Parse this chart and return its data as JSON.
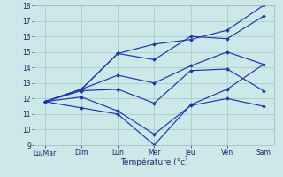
{
  "background_color": "#cce8e8",
  "grid_color": "#aacccc",
  "line_color": "#2233aa",
  "xlabel": "Température (°c)",
  "days": [
    "Lu/Mar",
    "Dim",
    "Lun",
    "Mer",
    "Jeu",
    "Ven",
    "Sam"
  ],
  "x_positions": [
    0,
    1,
    2,
    3,
    4,
    5,
    6
  ],
  "ylim": [
    9,
    18
  ],
  "yticks": [
    9,
    10,
    11,
    12,
    13,
    14,
    15,
    16,
    17,
    18
  ],
  "series": [
    [
      11.8,
      12.6,
      14.9,
      15.5,
      15.8,
      16.4,
      18.0
    ],
    [
      11.8,
      12.6,
      14.9,
      14.5,
      16.0,
      15.85,
      17.3
    ],
    [
      11.8,
      12.6,
      13.5,
      13.0,
      14.1,
      15.0,
      14.2
    ],
    [
      11.8,
      12.5,
      12.6,
      11.7,
      13.8,
      13.9,
      12.5
    ],
    [
      11.8,
      12.1,
      11.2,
      9.7,
      11.55,
      12.0,
      11.5
    ],
    [
      11.8,
      11.4,
      11.0,
      9.0,
      11.6,
      12.6,
      14.2
    ]
  ]
}
